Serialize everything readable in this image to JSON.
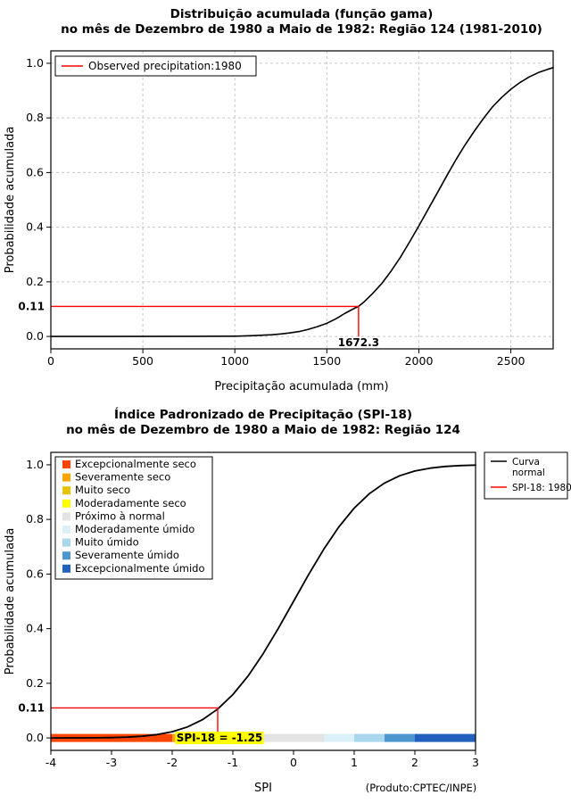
{
  "figure": {
    "bg": "#FFFFFF",
    "accent_red": "#FF0000"
  },
  "chart_data": [
    {
      "id": "gamma-cdf",
      "type": "line",
      "title": "Distribuição acumulada (função gama)",
      "subtitle": "no mês de Dezembro de 1980 a Maio de 1982: Região 124 (1981-2010)",
      "xlabel": "Precipitação acumulada (mm)",
      "ylabel": "Probabilidade acumulada",
      "xlim": [
        0,
        2730
      ],
      "ylim": [
        0,
        1
      ],
      "grid": true,
      "xticks": {
        "values": [
          0,
          500,
          1000,
          1500,
          2000,
          2500
        ],
        "labels": [
          "0",
          "500",
          "1000",
          "1500",
          "2000",
          "2500"
        ]
      },
      "yticks": {
        "values": [
          0,
          0.2,
          0.4,
          0.6,
          0.8,
          1
        ],
        "labels": [
          "0.0",
          "0.2",
          "0.4",
          "0.6",
          "0.8",
          "1.0"
        ]
      },
      "series": [
        {
          "name": "gamma-cdf-curve",
          "color": "#000000",
          "width": 1.6,
          "x": [
            0,
            800,
            1000,
            1100,
            1200,
            1250,
            1300,
            1350,
            1400,
            1450,
            1500,
            1550,
            1600,
            1650,
            1672.3,
            1700,
            1750,
            1800,
            1850,
            1900,
            1950,
            2000,
            2050,
            2100,
            2150,
            2200,
            2250,
            2300,
            2350,
            2400,
            2450,
            2500,
            2550,
            2600,
            2650,
            2700,
            2730
          ],
          "y": [
            0,
            0.0005,
            0.001,
            0.003,
            0.006,
            0.009,
            0.013,
            0.018,
            0.026,
            0.036,
            0.048,
            0.065,
            0.085,
            0.103,
            0.11,
            0.125,
            0.158,
            0.195,
            0.24,
            0.29,
            0.346,
            0.405,
            0.465,
            0.525,
            0.586,
            0.645,
            0.7,
            0.75,
            0.797,
            0.84,
            0.875,
            0.905,
            0.93,
            0.95,
            0.966,
            0.978,
            0.984
          ]
        }
      ],
      "line_legend": [
        {
          "label_lines": [
            "Observed precipitation:1980"
          ],
          "color": "#FF0000"
        }
      ],
      "annotation": {
        "x": 1672.3,
        "y": 0.11,
        "x_label": "1672.3",
        "y_label": "0.11",
        "color": "#FF0000"
      }
    },
    {
      "id": "spi-cdf",
      "type": "line",
      "title": "Índice Padronizado de Precipitação (SPI-18)",
      "subtitle": "no mês de Dezembro de 1980 a Maio de 1982: Região 124",
      "xlabel": "SPI",
      "ylabel": "Probabilidade acumulada",
      "credit": "(Produto:CPTEC/INPE)",
      "xlim": [
        -4,
        3
      ],
      "ylim": [
        0,
        1
      ],
      "grid": false,
      "xticks": {
        "values": [
          -4,
          -3,
          -2,
          -1,
          0,
          1,
          2,
          3
        ],
        "labels": [
          "-4",
          "-3",
          "-2",
          "-1",
          "0",
          "1",
          "2",
          "3"
        ]
      },
      "yticks": {
        "values": [
          0,
          0.2,
          0.4,
          0.6,
          0.8,
          1
        ],
        "labels": [
          "0.0",
          "0.2",
          "0.4",
          "0.6",
          "0.8",
          "1.0"
        ]
      },
      "series": [
        {
          "name": "normal-cdf-curve",
          "color": "#000000",
          "width": 1.8,
          "x": [
            -4,
            -3.75,
            -3.5,
            -3.25,
            -3,
            -2.75,
            -2.5,
            -2.25,
            -2,
            -1.75,
            -1.5,
            -1.25,
            -1,
            -0.75,
            -0.5,
            -0.25,
            0,
            0.25,
            0.5,
            0.75,
            1,
            1.25,
            1.5,
            1.75,
            2,
            2.25,
            2.5,
            2.75,
            3
          ],
          "y": [
            0.0,
            0.0001,
            0.0002,
            0.0006,
            0.0013,
            0.003,
            0.0062,
            0.0122,
            0.0228,
            0.0401,
            0.0668,
            0.1056,
            0.1587,
            0.2266,
            0.3085,
            0.4013,
            0.5,
            0.5987,
            0.6915,
            0.7734,
            0.8413,
            0.8944,
            0.9332,
            0.9599,
            0.9772,
            0.9878,
            0.9938,
            0.997,
            0.9987
          ]
        }
      ],
      "categories": [
        {
          "label": "Excepcionalmente seco",
          "color": "#FF4500",
          "from": -4,
          "to": -2
        },
        {
          "label": "Severamente seco",
          "color": "#FFA500",
          "from": -2,
          "to": -1.5
        },
        {
          "label": "Muito seco",
          "color": "#E6C200",
          "from": -1.5,
          "to": -1
        },
        {
          "label": "Moderadamente seco",
          "color": "#FFFF00",
          "from": -1,
          "to": -0.5
        },
        {
          "label": "Próximo à normal",
          "color": "#E3E3E3",
          "from": -0.5,
          "to": 0.5
        },
        {
          "label": "Moderadamente úmido",
          "color": "#DCF0FA",
          "from": 0.5,
          "to": 1
        },
        {
          "label": "Muito úmido",
          "color": "#A9D8EC",
          "from": 1,
          "to": 1.5
        },
        {
          "label": "Severamente úmido",
          "color": "#4E97CE",
          "from": 1.5,
          "to": 2
        },
        {
          "label": "Excepcionalmente úmido",
          "color": "#2361BE",
          "from": 2,
          "to": 3
        }
      ],
      "line_legend": [
        {
          "label_lines": [
            "Curva",
            "normal"
          ],
          "color": "#000000"
        },
        {
          "label_lines": [
            "SPI-18: 1980"
          ],
          "color": "#FF0000"
        }
      ],
      "annotation": {
        "x": -1.25,
        "y": 0.11,
        "y_label": "0.11",
        "bar_label": "SPI-18 = -1.25",
        "bar_label_bg": "#FFFF00",
        "color": "#FF0000"
      }
    }
  ]
}
